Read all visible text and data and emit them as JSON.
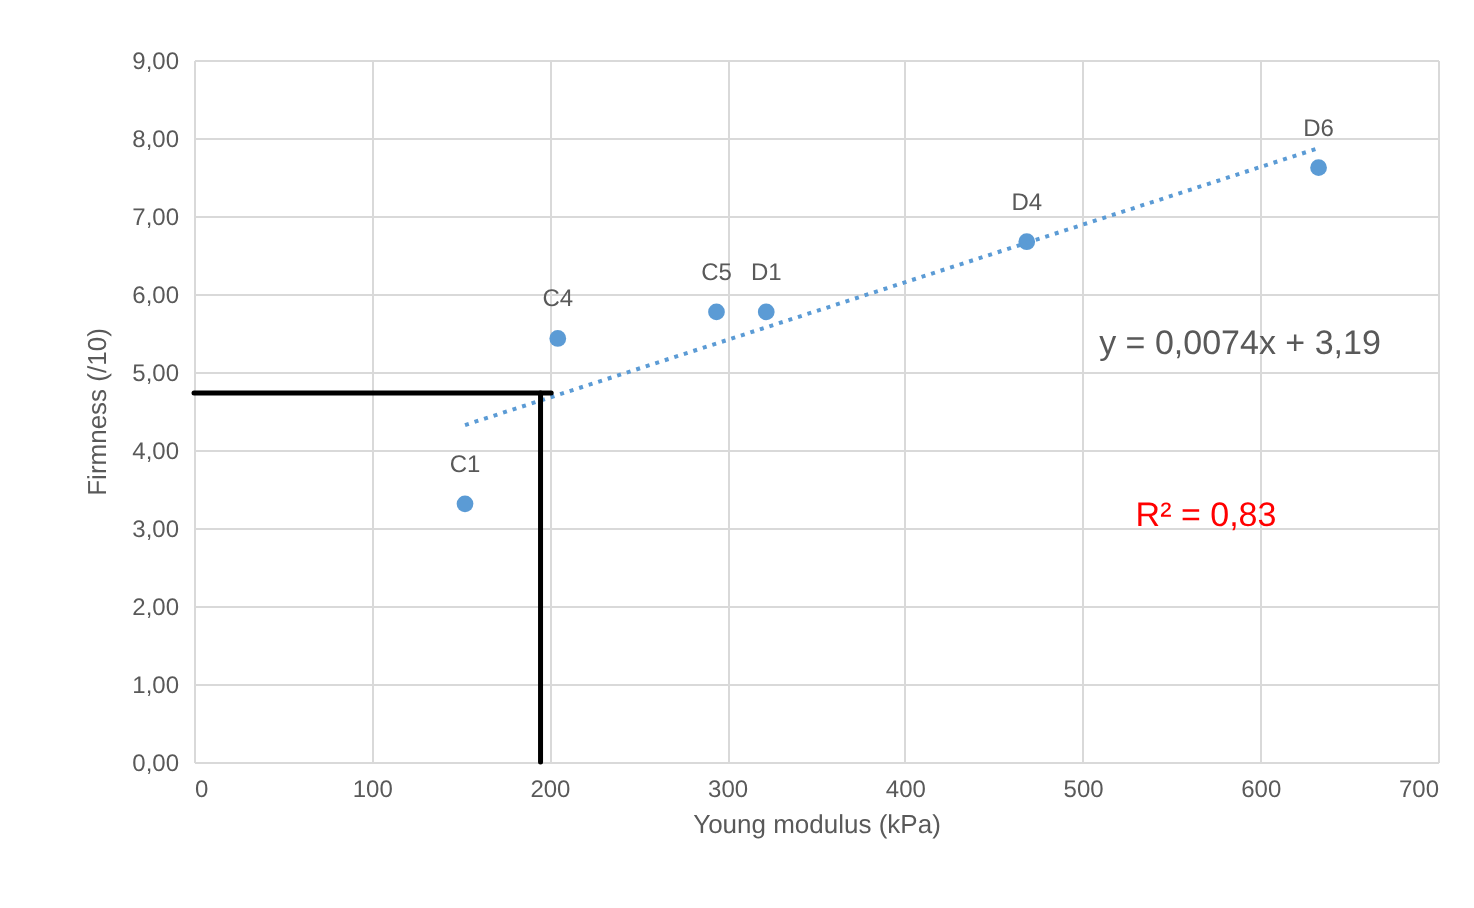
{
  "chart_data": {
    "type": "scatter",
    "xlabel": "Young modulus (kPa)",
    "ylabel": "Firmness (/10)",
    "xlim": [
      0,
      700
    ],
    "xticks": [
      0,
      100,
      200,
      300,
      400,
      500,
      600,
      700
    ],
    "ylim": [
      0,
      9
    ],
    "yticks": [
      {
        "value": 0,
        "label": "0,00"
      },
      {
        "value": 1,
        "label": "1,00"
      },
      {
        "value": 2,
        "label": "2,00"
      },
      {
        "value": 3,
        "label": "3,00"
      },
      {
        "value": 4,
        "label": "4,00"
      },
      {
        "value": 5,
        "label": "5,00"
      },
      {
        "value": 6,
        "label": "6,00"
      },
      {
        "value": 7,
        "label": "7,00"
      },
      {
        "value": 8,
        "label": "8,00"
      },
      {
        "value": 9,
        "label": "9,00"
      }
    ],
    "grid": true,
    "legend": false,
    "series": [
      {
        "type": "scatter",
        "color": "#5b9bd5",
        "marker": "circle",
        "x": [
          152.5,
          204.7,
          294,
          322,
          468.6,
          632.8
        ],
        "values": [
          3.31,
          5.43,
          5.77,
          5.77,
          6.67,
          7.62
        ]
      },
      {
        "type": "line",
        "color": "#5b9bd5",
        "line_style": "dotted",
        "marker": "none",
        "x": [
          152.5,
          632.8
        ],
        "values": [
          4.32,
          7.87
        ]
      },
      {
        "type": "line",
        "color": "#000000",
        "line_style": "solid",
        "marker": "none",
        "x": [
          0,
          201
        ],
        "values": [
          4.73,
          4.73
        ]
      },
      {
        "type": "line",
        "color": "#000000",
        "line_style": "solid",
        "marker": "none",
        "x": [
          195,
          195
        ],
        "values": [
          4.73,
          0
        ]
      }
    ],
    "annotations": [
      {
        "text": "C1",
        "x": 152.5,
        "y": 3.31
      },
      {
        "text": "C4",
        "x": 204.7,
        "y": 5.43
      },
      {
        "text": "C5",
        "x": 294,
        "y": 5.77
      },
      {
        "text": "D1",
        "x": 322,
        "y": 5.77
      },
      {
        "text": "D4",
        "x": 468.6,
        "y": 6.67
      },
      {
        "text": "D6",
        "x": 632.8,
        "y": 7.62
      },
      "y = 0,0074x + 3,19",
      "R² = 0,83"
    ]
  }
}
